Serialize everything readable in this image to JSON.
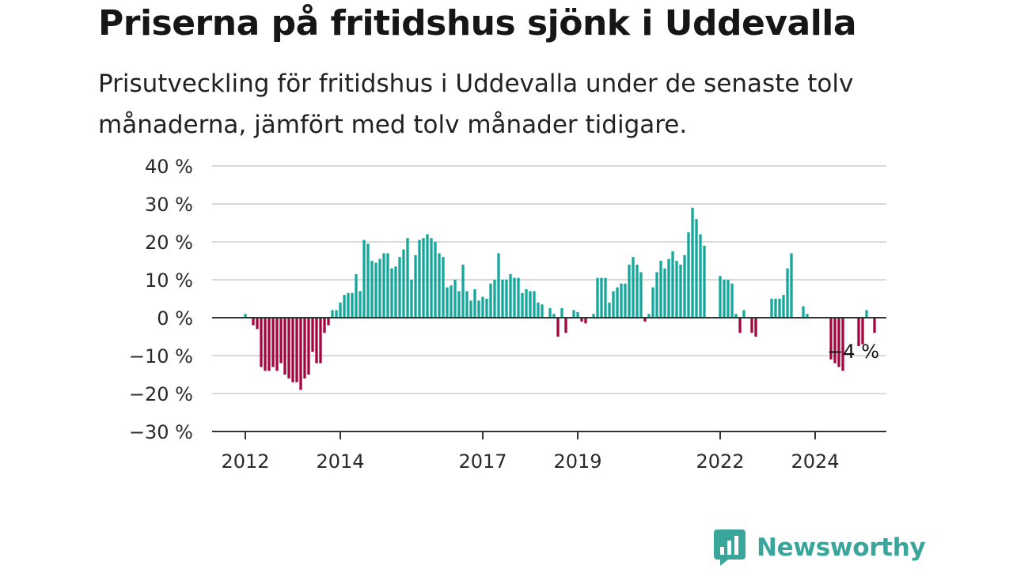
{
  "title": "Priserna på fritidshus sjönk i Uddevalla",
  "subtitle": "Prisutveckling för fritidshus i Uddevalla under de senaste tolv månaderna, jämfört med tolv månader tidigare.",
  "brand": {
    "name": "Newsworthy",
    "color": "#3aa59a",
    "icon": "bar-chart-speech-bubble-icon"
  },
  "colors": {
    "positive": "#14a89c",
    "negative": "#a3053c",
    "grid": "#d9d9d9",
    "zero_line": "#333333"
  },
  "chart_data": {
    "type": "bar",
    "title": "Priserna på fritidshus sjönk i Uddevalla",
    "xlabel": "",
    "ylabel": "",
    "ylim": [
      -30,
      40
    ],
    "yticks": [
      40,
      30,
      20,
      10,
      0,
      -10,
      -20,
      -30
    ],
    "ytick_labels": [
      "40 %",
      "30 %",
      "20 %",
      "10 %",
      "0 %",
      "−10 %",
      "−20 %",
      "−30 %"
    ],
    "xticks": [
      {
        "label": "2012",
        "month_index": 0
      },
      {
        "label": "2014",
        "month_index": 24
      },
      {
        "label": "2017",
        "month_index": 60
      },
      {
        "label": "2019",
        "month_index": 84
      },
      {
        "label": "2022",
        "month_index": 120
      },
      {
        "label": "2024",
        "month_index": 144
      }
    ],
    "first_month": "2012-01",
    "grid": true,
    "last_value_label": "−4 %",
    "values": [
      1,
      0,
      -2,
      -3,
      -13,
      -14,
      -14,
      -13,
      -14,
      -12,
      -15,
      -16,
      -17,
      -17,
      -19,
      -16,
      -15,
      -9,
      -12,
      -12,
      -4,
      -2,
      2,
      2,
      4,
      6,
      6.5,
      6.5,
      11.5,
      7,
      20.5,
      19.5,
      15,
      14.5,
      15.5,
      17,
      17,
      13,
      13.5,
      16,
      18,
      21,
      10,
      16.5,
      20.5,
      21,
      22,
      21,
      20,
      17,
      16,
      8,
      8.5,
      10,
      7,
      14,
      7,
      4.5,
      7.5,
      4.5,
      5.5,
      5,
      9,
      10,
      17,
      10,
      10,
      11.5,
      10.5,
      10.5,
      6.5,
      7.5,
      7,
      7,
      4,
      3.5,
      0,
      2.5,
      1,
      -5,
      2.5,
      -4,
      0,
      2,
      1.5,
      -1,
      -1.5,
      0,
      1,
      10.5,
      10.5,
      10.5,
      4,
      7,
      8,
      9,
      9,
      14,
      16,
      14,
      12,
      -1,
      1,
      8,
      12,
      15,
      13,
      15.5,
      17.5,
      15,
      14,
      16.5,
      22.5,
      29,
      26,
      22,
      19,
      0,
      0,
      0,
      11,
      10,
      10,
      9,
      1,
      -4,
      2,
      0,
      -4,
      -5,
      0,
      0,
      0,
      5,
      5,
      5,
      6,
      13,
      17,
      0,
      0,
      3,
      1,
      0,
      0,
      0,
      0,
      0,
      -11,
      -12,
      -13,
      -14,
      0,
      0,
      0,
      -7.5,
      -7,
      2,
      0,
      -4
    ]
  }
}
